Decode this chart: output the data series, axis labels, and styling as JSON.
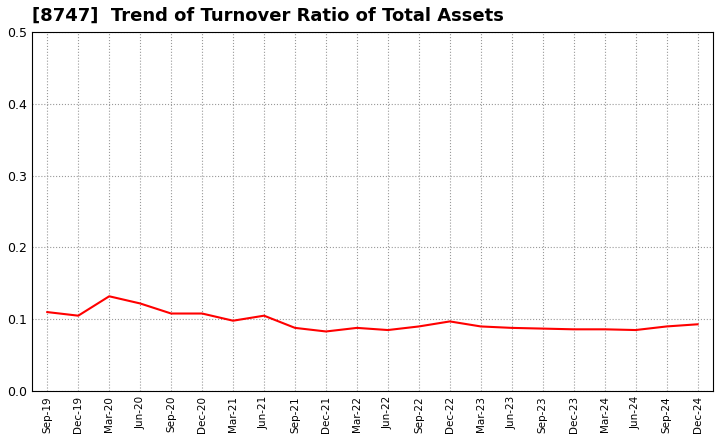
{
  "title": "[8747]  Trend of Turnover Ratio of Total Assets",
  "title_fontsize": 13,
  "line_color": "#FF0000",
  "line_width": 1.5,
  "background_color": "#FFFFFF",
  "grid_color": "#999999",
  "ylim": [
    0.0,
    0.5
  ],
  "yticks": [
    0.0,
    0.1,
    0.2,
    0.3,
    0.4,
    0.5
  ],
  "x_labels": [
    "Sep-19",
    "Dec-19",
    "Mar-20",
    "Jun-20",
    "Sep-20",
    "Dec-20",
    "Mar-21",
    "Jun-21",
    "Sep-21",
    "Dec-21",
    "Mar-22",
    "Jun-22",
    "Sep-22",
    "Dec-22",
    "Mar-23",
    "Jun-23",
    "Sep-23",
    "Dec-23",
    "Mar-24",
    "Jun-24",
    "Sep-24",
    "Dec-24"
  ],
  "values": [
    0.11,
    0.105,
    0.132,
    0.122,
    0.108,
    0.108,
    0.098,
    0.105,
    0.088,
    0.083,
    0.088,
    0.085,
    0.09,
    0.097,
    0.09,
    0.088,
    0.087,
    0.086,
    0.086,
    0.085,
    0.09,
    0.093
  ]
}
